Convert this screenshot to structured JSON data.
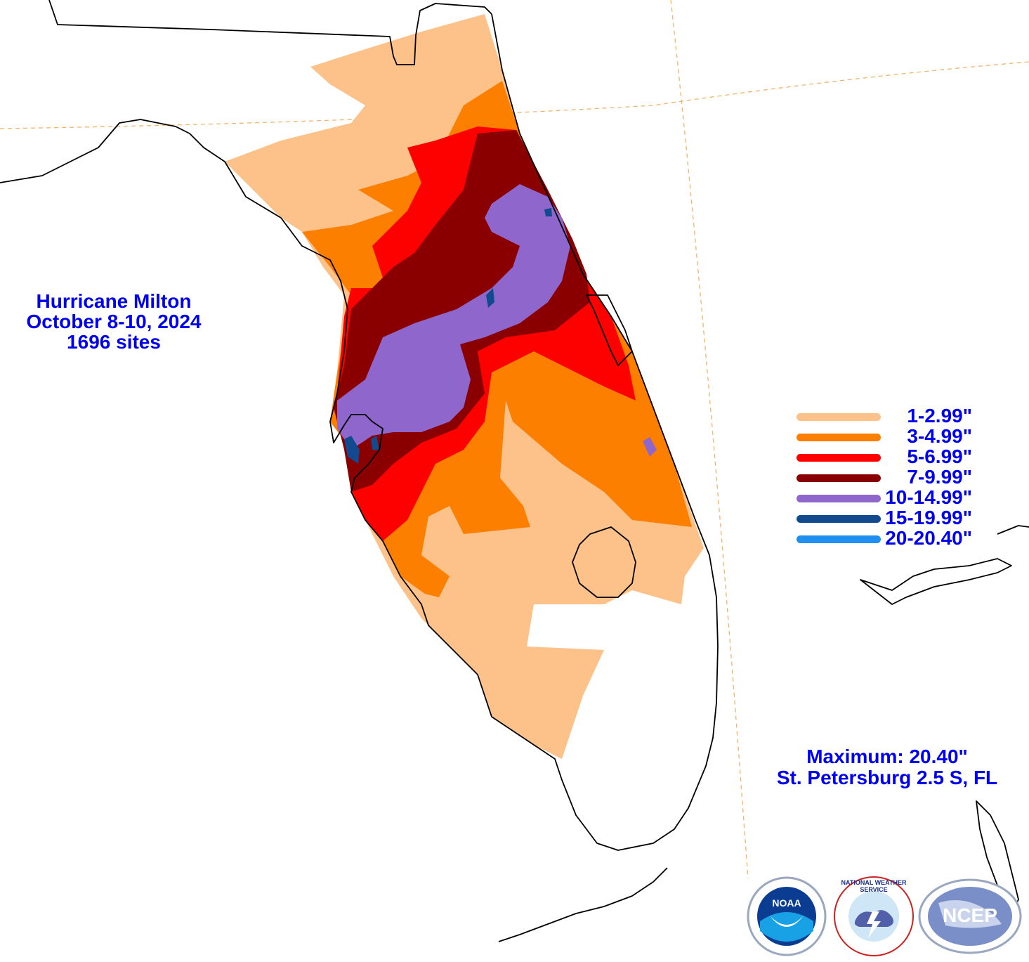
{
  "title": {
    "line1": "Hurricane Milton",
    "line2": "October 8-10, 2024",
    "line3": "1696 sites"
  },
  "legend": [
    {
      "label": "1-2.99\"",
      "color": "#fdc18a"
    },
    {
      "label": "3-4.99\"",
      "color": "#fd7f00"
    },
    {
      "label": "5-6.99\"",
      "color": "#fd0000"
    },
    {
      "label": "7-9.99\"",
      "color": "#8a0000"
    },
    {
      "label": "10-14.99\"",
      "color": "#8f66cc"
    },
    {
      "label": "15-19.99\"",
      "color": "#124a90"
    },
    {
      "label": "20-20.40\"",
      "color": "#1f8ff0"
    }
  ],
  "maximum": {
    "line1": "Maximum:  20.40\"",
    "line2": "St. Petersburg 2.5 S, FL"
  },
  "logos": {
    "noaa": {
      "name": "noaa-logo",
      "text": "NOAA"
    },
    "nws": {
      "name": "nws-logo",
      "text": "NATIONAL WEATHER SERVICE"
    },
    "ncep": {
      "name": "ncep-logo",
      "text": "NCEP"
    }
  },
  "colors": {
    "text": "#0000ee",
    "gridline": "#f2b36b",
    "coast": "#000000"
  }
}
